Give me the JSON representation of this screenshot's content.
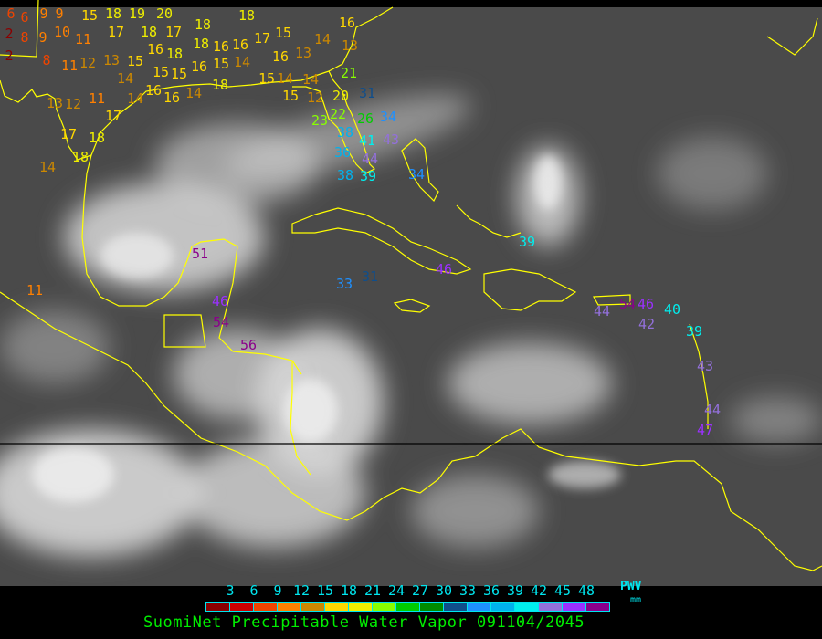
{
  "title": "SuomiNet Precipitable Water Vapor 091104/2045",
  "legend": {
    "label": "PWV",
    "unit": "mm",
    "ticks": [
      "3",
      "6",
      "9",
      "12",
      "15",
      "18",
      "21",
      "24",
      "27",
      "30",
      "33",
      "36",
      "39",
      "42",
      "45",
      "48"
    ],
    "colors": [
      "#8b0000",
      "#cc0000",
      "#ee4400",
      "#ff8000",
      "#cc8800",
      "#ffd700",
      "#eeee00",
      "#88ff00",
      "#00cc00",
      "#008b00",
      "#104e8b",
      "#1e90ff",
      "#00b2ee",
      "#00eeee",
      "#9370db",
      "#9b30ff",
      "#8b008b"
    ]
  },
  "map": {
    "coastline_color": "#ffff00",
    "stations": [
      "6",
      "6",
      "2",
      "2",
      "9",
      "9",
      "9",
      "8",
      "10",
      "11",
      "12",
      "8",
      "11",
      "13",
      "15",
      "14",
      "15",
      "18",
      "19",
      "20",
      "17",
      "18",
      "17",
      "18",
      "16",
      "18",
      "18",
      "16",
      "15",
      "15",
      "16",
      "18",
      "16",
      "16",
      "15",
      "14",
      "13",
      "12",
      "11",
      "17",
      "14",
      "17",
      "18",
      "18",
      "14",
      "11",
      "18",
      "17",
      "15",
      "16",
      "16",
      "13",
      "14",
      "15",
      "14",
      "15",
      "14",
      "12",
      "14",
      "16",
      "13",
      "21",
      "20",
      "31",
      "22",
      "26",
      "23",
      "38",
      "34",
      "41",
      "43",
      "36",
      "44",
      "38",
      "39",
      "34",
      "39",
      "51",
      "33",
      "31",
      "46",
      "46",
      "54",
      "56",
      "44",
      "54",
      "46",
      "42",
      "40",
      "39",
      "43",
      "44",
      "47"
    ]
  }
}
